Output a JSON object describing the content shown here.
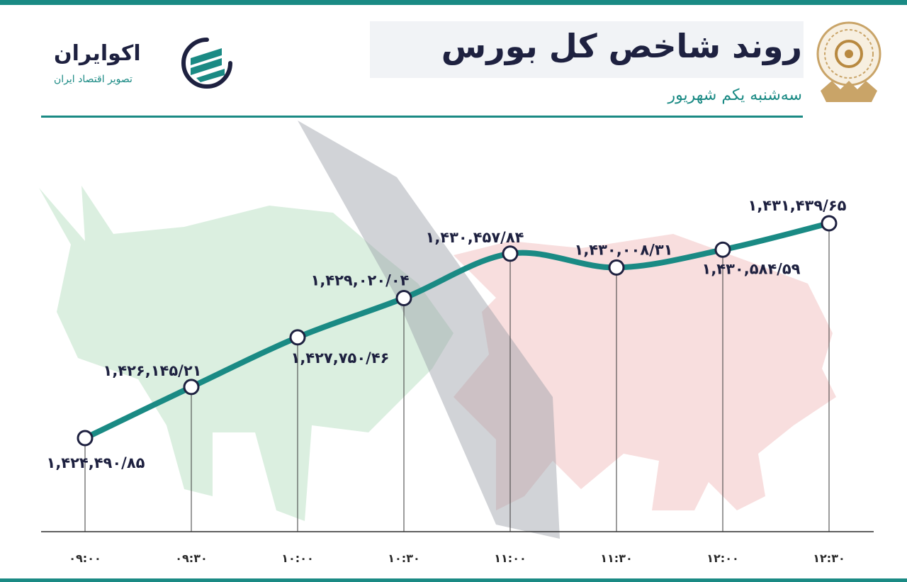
{
  "header": {
    "title": "روند شاخص کل بورس",
    "subtitle": "سه‌شنبه یکم شهریور"
  },
  "brand": {
    "name": "اکوایران",
    "tagline": "تصویر اقتصاد ایران",
    "logo_icon": "ecoiran-logo-icon",
    "seal_icon": "tehran-stock-exchange-seal-icon"
  },
  "colors": {
    "line": "#1a8a84",
    "accent": "#1a8a84",
    "label": "#1e2140",
    "bull": "#cfe9d6",
    "bear": "#f5d3d3"
  },
  "chart_data": {
    "type": "line",
    "title": "روند شاخص کل بورس",
    "x": [
      "۰۹:۰۰",
      "۰۹:۳۰",
      "۱۰:۰۰",
      "۱۰:۳۰",
      "۱۱:۰۰",
      "۱۱:۳۰",
      "۱۲:۰۰",
      "۱۲:۳۰"
    ],
    "series": [
      {
        "values": [
          1424490.85,
          1426145.21,
          1427750.46,
          1429020.04,
          1430457.84,
          1430008.31,
          1430584.59,
          1431439.65
        ],
        "labels": [
          "۱,۴۲۴,۴۹۰/۸۵",
          "۱,۴۲۶,۱۴۵/۲۱",
          "۱,۴۲۷,۷۵۰/۴۶",
          "۱,۴۲۹,۰۲۰/۰۴",
          "۱,۴۳۰,۴۵۷/۸۴",
          "۱,۴۳۰,۰۰۸/۳۱",
          "۱,۴۳۰,۵۸۴/۵۹",
          "۱,۴۳۱,۴۳۹/۶۵"
        ]
      }
    ],
    "grid": false
  }
}
